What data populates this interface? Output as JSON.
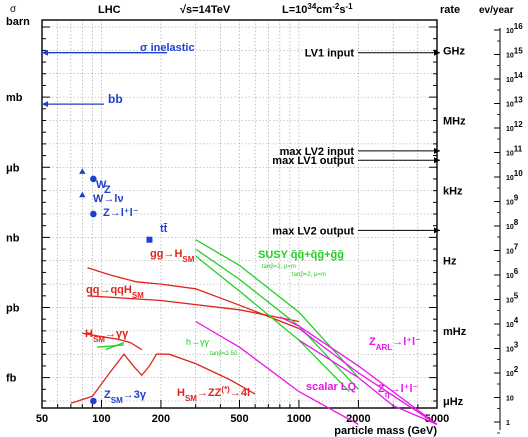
{
  "chart_data": {
    "type": "line",
    "header": {
      "left_axis_unit": "σ",
      "left_axis_label": "barn",
      "collider": "LHC",
      "energy": "√s=14TeV",
      "luminosity": "L=10",
      "luminosity_exp": "34",
      "luminosity_unit": "cm",
      "luminosity_unit_exp": "-2",
      "luminosity_unit2": "s",
      "luminosity_unit2_exp": "-1",
      "rate_label": "rate",
      "events_label": "ev/year"
    },
    "xlabel": "particle mass (GeV)",
    "x_scale": "log",
    "xlim": [
      50,
      5000
    ],
    "x_ticks": [
      {
        "value": 50,
        "label": "50"
      },
      {
        "value": 100,
        "label": "100"
      },
      {
        "value": 200,
        "label": "200"
      },
      {
        "value": 500,
        "label": "500"
      },
      {
        "value": 1000,
        "label": "1000"
      },
      {
        "value": 2000,
        "label": "2000"
      },
      {
        "value": 5000,
        "label": "5000"
      }
    ],
    "y_scale": "log",
    "ylabel": "σ (barn)",
    "ylim_barn_exponent": [
      -16.3,
      0.3
    ],
    "y_ticks_left": [
      {
        "exp": 0,
        "label": "barn"
      },
      {
        "exp": -3,
        "label": "mb"
      },
      {
        "exp": -6,
        "label": "μb"
      },
      {
        "exp": -9,
        "label": "nb"
      },
      {
        "exp": -12,
        "label": "pb"
      },
      {
        "exp": -15,
        "label": "fb"
      }
    ],
    "y_ticks_rate": [
      {
        "exp": -1,
        "label": "GHz"
      },
      {
        "exp": -4,
        "label": "MHz"
      },
      {
        "exp": -7,
        "label": "kHz"
      },
      {
        "exp": -10,
        "label": "Hz"
      },
      {
        "exp": -13,
        "label": "mHz"
      },
      {
        "exp": -16,
        "label": "μHz"
      }
    ],
    "y_ticks_events": [
      {
        "exp": -0.5,
        "base": "10",
        "sup": "16"
      },
      {
        "exp": -1.5,
        "base": "10",
        "sup": "15"
      },
      {
        "exp": -2.5,
        "base": "10",
        "sup": "14"
      },
      {
        "exp": -3.5,
        "base": "10",
        "sup": "13"
      },
      {
        "exp": -4.5,
        "base": "10",
        "sup": "12"
      },
      {
        "exp": -5.5,
        "base": "10",
        "sup": "11"
      },
      {
        "exp": -6.5,
        "base": "10",
        "sup": "10"
      },
      {
        "exp": -7.5,
        "base": "10",
        "sup": "9"
      },
      {
        "exp": -8.5,
        "base": "10",
        "sup": "8"
      },
      {
        "exp": -9.5,
        "base": "10",
        "sup": "7"
      },
      {
        "exp": -10.5,
        "base": "10",
        "sup": "6"
      },
      {
        "exp": -11.5,
        "base": "10",
        "sup": "5"
      },
      {
        "exp": -12.5,
        "base": "10",
        "sup": "4"
      },
      {
        "exp": -13.5,
        "base": "10",
        "sup": "3"
      },
      {
        "exp": -14.5,
        "base": "10",
        "sup": "2"
      },
      {
        "exp": -15.5,
        "base": "10",
        "sup": ""
      },
      {
        "exp": -16.5,
        "base": "1",
        "sup": ""
      }
    ],
    "series": [
      {
        "name": "σ inelastic",
        "color": "#1f3fd0",
        "x": [
          50,
          215
        ],
        "y_exp": [
          -1.1,
          -1.1
        ],
        "arrow": "left"
      },
      {
        "name": "bb",
        "color": "#1f3fd0",
        "x": [
          50,
          103
        ],
        "y_exp": [
          -3.3,
          -3.3
        ],
        "arrow": "left"
      },
      {
        "name": "gg→H_SM",
        "color": "#e0241c",
        "x": [
          85,
          110,
          150,
          200,
          300,
          500,
          1000
        ],
        "y_exp": [
          -10.3,
          -10.6,
          -10.9,
          -11.0,
          -11.2,
          -11.9,
          -12.9
        ]
      },
      {
        "name": "qq→qqH_SM",
        "color": "#e0241c",
        "x": [
          85,
          200,
          500,
          1000
        ],
        "y_exp": [
          -11.5,
          -11.7,
          -12.1,
          -12.6
        ]
      },
      {
        "name": "H_SM→γγ",
        "color": "#e0241c",
        "x": [
          80,
          100,
          120,
          140,
          160
        ],
        "y_exp": [
          -13.1,
          -13.25,
          -13.35,
          -13.5,
          -13.8
        ]
      },
      {
        "name": "H_SM→ZZ(*)→4l",
        "color": "#e0241c",
        "x": [
          70,
          90,
          110,
          130,
          145,
          160,
          175,
          190,
          220,
          300,
          450,
          600
        ],
        "y_exp": [
          -16.1,
          -15.8,
          -14.8,
          -14.0,
          -14.5,
          -14.9,
          -14.5,
          -14.0,
          -14.0,
          -14.4,
          -15.1,
          -15.7
        ]
      },
      {
        "name": "SUSY q̃q̃+q̃g̃+g̃g̃ (tanβ=2, μ=m_g̃=m_q̃)",
        "color": "#22d022",
        "x": [
          300,
          500,
          1000,
          2000
        ],
        "y_exp": [
          -9.1,
          -10.2,
          -12.2,
          -15.0
        ]
      },
      {
        "name": "SUSY q̃q̃+q̃g̃+g̃g̃ (tanβ=2, μ=m_g̃=m_q̃/2)",
        "color": "#22d022",
        "x": [
          300,
          500,
          1000,
          2000
        ],
        "y_exp": [
          -9.5,
          -10.8,
          -12.8,
          -15.5
        ]
      },
      {
        "name": "SUSY q̃q̃+q̃g̃+g̃g̃ (tanβ=2, μ=m_g̃=m_q̃/2) #2",
        "color": "#22d022",
        "x": [
          300,
          500,
          1000,
          1800
        ],
        "y_exp": [
          -9.8,
          -11.3,
          -13.4,
          -15.6
        ]
      },
      {
        "name": "h→γγ (tanβ=2-50)",
        "color": "#22d022",
        "x": [
          95,
          130
        ],
        "y_exp": [
          -13.7,
          -13.6
        ]
      },
      {
        "name": "h→γγ (tanβ=2-50) #2",
        "color": "#22d022",
        "x": [
          105,
          130
        ],
        "y_exp": [
          -13.8,
          -13.5
        ]
      },
      {
        "name": "Z_ARL→l+l-",
        "color": "#ea14ea",
        "x": [
          800,
          1000,
          2000,
          5000
        ],
        "y_exp": [
          -12.4,
          -12.8,
          -14.5,
          -17.0
        ]
      },
      {
        "name": "Z_ARL→l+l- #2",
        "color": "#ea14ea",
        "x": [
          1000,
          2000,
          5000
        ],
        "y_exp": [
          -12.9,
          -14.8,
          -17.0
        ]
      },
      {
        "name": "scalar LQ",
        "color": "#ea14ea",
        "x": [
          300,
          500,
          1000,
          2000
        ],
        "y_exp": [
          -12.6,
          -13.7,
          -15.6,
          -17.0
        ]
      },
      {
        "name": "Z_η→l+l-",
        "color": "#ea14ea",
        "x": [
          1000,
          2000,
          3000,
          5000
        ],
        "y_exp": [
          -13.4,
          -15.0,
          -16.2,
          -17.0
        ]
      }
    ],
    "points": [
      {
        "label": "W",
        "marker": "triangle",
        "x": 80,
        "y_exp": -6.2,
        "color": "#1f3fd0"
      },
      {
        "label": "W→lν",
        "marker": "triangle",
        "x": 80,
        "y_exp": -7.2,
        "color": "#1f3fd0"
      },
      {
        "label": "Z",
        "marker": "circle",
        "x": 91,
        "y_exp": -6.5,
        "color": "#1f3fd0"
      },
      {
        "label": "Z→l+l-",
        "marker": "circle",
        "x": 91,
        "y_exp": -8.0,
        "color": "#1f3fd0"
      },
      {
        "label": "tt̄",
        "marker": "square",
        "x": 175,
        "y_exp": -9.1,
        "color": "#1f3fd0"
      },
      {
        "label": "Z_SM→3γ",
        "marker": "circle",
        "x": 91,
        "y_exp": -16.0,
        "color": "#1f3fd0"
      }
    ],
    "trigger_thresholds": [
      {
        "label": "LV1 input",
        "y_exp": -1.1
      },
      {
        "label": "max LV2 input",
        "y_exp": -5.3
      },
      {
        "label": "max LV1 output",
        "y_exp": -5.7
      },
      {
        "label": "max LV2 output",
        "y_exp": -8.7
      }
    ],
    "labels": {
      "sigma_inelastic": "σ inelastic",
      "bb": "bb",
      "w": "W",
      "z": "Z",
      "w_lnu": "W→lν",
      "z_ll": "Z→l⁺l⁻",
      "tt": "tt̄",
      "gg_h": "gg→H",
      "qq_qqh": "qq→qqH",
      "h_gg": "H",
      "h_gg_tail": "→γγ",
      "h_zz": "H",
      "h_zz_mid": "→ZZ",
      "h_zz_tail": "→4l",
      "sm": "SM",
      "star": "(*)",
      "susy": "SUSY q̃q̃+q̃g̃+g̃g̃",
      "susy_note1": "tanβ=2, μ=m",
      "susy_note2": "tanβ=2, μ=m",
      "h_gamgam": "h→γγ",
      "h_gamgam_note": "tanβ=2-50",
      "z_arl": "Z",
      "z_arl_sub": "ARL",
      "z_arl_tail": "→l⁺l⁻",
      "scalar_lq": "scalar LQ",
      "z_eta": "Z",
      "z_eta_sub": "η",
      "z_eta_tail": "→l⁺l⁻",
      "z_sm": "Z",
      "z_sm_tail": "→3γ"
    },
    "grid": true
  }
}
